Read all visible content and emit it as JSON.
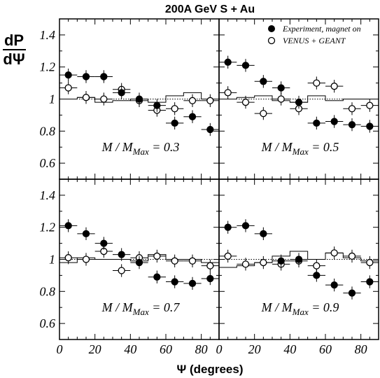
{
  "chart_data": {
    "type": "scatter",
    "title": "200A GeV  S + Au",
    "xlabel": "Ψ (degrees)",
    "ylabel_num": "dP",
    "ylabel_den": "dΨ",
    "xlim": [
      0,
      90
    ],
    "ylim": [
      0.5,
      1.5
    ],
    "xticks": [
      "0",
      "20",
      "40",
      "60",
      "80"
    ],
    "yticks": [
      "0.6",
      "0.8",
      "1",
      "1.2",
      "1.4"
    ],
    "legend": [
      {
        "name": "Experiment, magnet on",
        "marker": "filled-circle"
      },
      {
        "name": "VENUS + GEANT",
        "marker": "open-circle"
      }
    ],
    "x": [
      5,
      15,
      25,
      35,
      45,
      55,
      65,
      75,
      85
    ],
    "panels": [
      {
        "label_main": "M / M",
        "label_sub": "Max",
        "label_val": " = 0.3",
        "experiment": [
          1.15,
          1.14,
          1.14,
          1.04,
          1.0,
          0.96,
          0.85,
          0.89,
          0.81
        ],
        "venus": [
          1.07,
          1.01,
          1.0,
          1.06,
          0.99,
          0.93,
          0.94,
          0.99,
          0.99
        ],
        "histogram": [
          1.0,
          1.01,
          0.98,
          0.99,
          1.0,
          0.98,
          1.02,
          1.04,
          1.0
        ]
      },
      {
        "label_main": "M / M",
        "label_sub": "Max",
        "label_val": " = 0.5",
        "experiment": [
          1.23,
          1.21,
          1.11,
          1.07,
          0.98,
          0.85,
          0.86,
          0.84,
          0.83
        ],
        "venus": [
          1.04,
          0.98,
          0.91,
          1.0,
          0.94,
          1.1,
          1.08,
          0.94,
          0.96
        ],
        "histogram": [
          1.0,
          1.01,
          1.02,
          0.99,
          0.98,
          1.02,
          0.99,
          1.0,
          1.0
        ]
      },
      {
        "label_main": "M / M",
        "label_sub": "Max",
        "label_val": " = 0.7",
        "experiment": [
          1.21,
          1.16,
          1.1,
          1.03,
          0.98,
          0.89,
          0.86,
          0.85,
          0.88
        ],
        "venus": [
          1.01,
          1.0,
          1.05,
          0.93,
          1.01,
          1.02,
          0.99,
          0.99,
          0.96
        ],
        "histogram": [
          0.98,
          1.01,
          1.0,
          1.0,
          0.99,
          1.03,
          1.0,
          1.0,
          0.98
        ]
      },
      {
        "label_main": "M / M",
        "label_sub": "Max",
        "label_val": " = 0.9",
        "experiment": [
          1.2,
          1.21,
          1.16,
          0.99,
          1.0,
          0.9,
          0.84,
          0.79,
          0.86
        ],
        "venus": [
          1.02,
          0.97,
          0.98,
          0.97,
          0.99,
          0.96,
          1.04,
          1.02,
          0.98
        ],
        "histogram": [
          0.95,
          0.96,
          0.98,
          1.02,
          1.05,
          1.0,
          1.04,
          1.01,
          0.99
        ]
      }
    ]
  }
}
